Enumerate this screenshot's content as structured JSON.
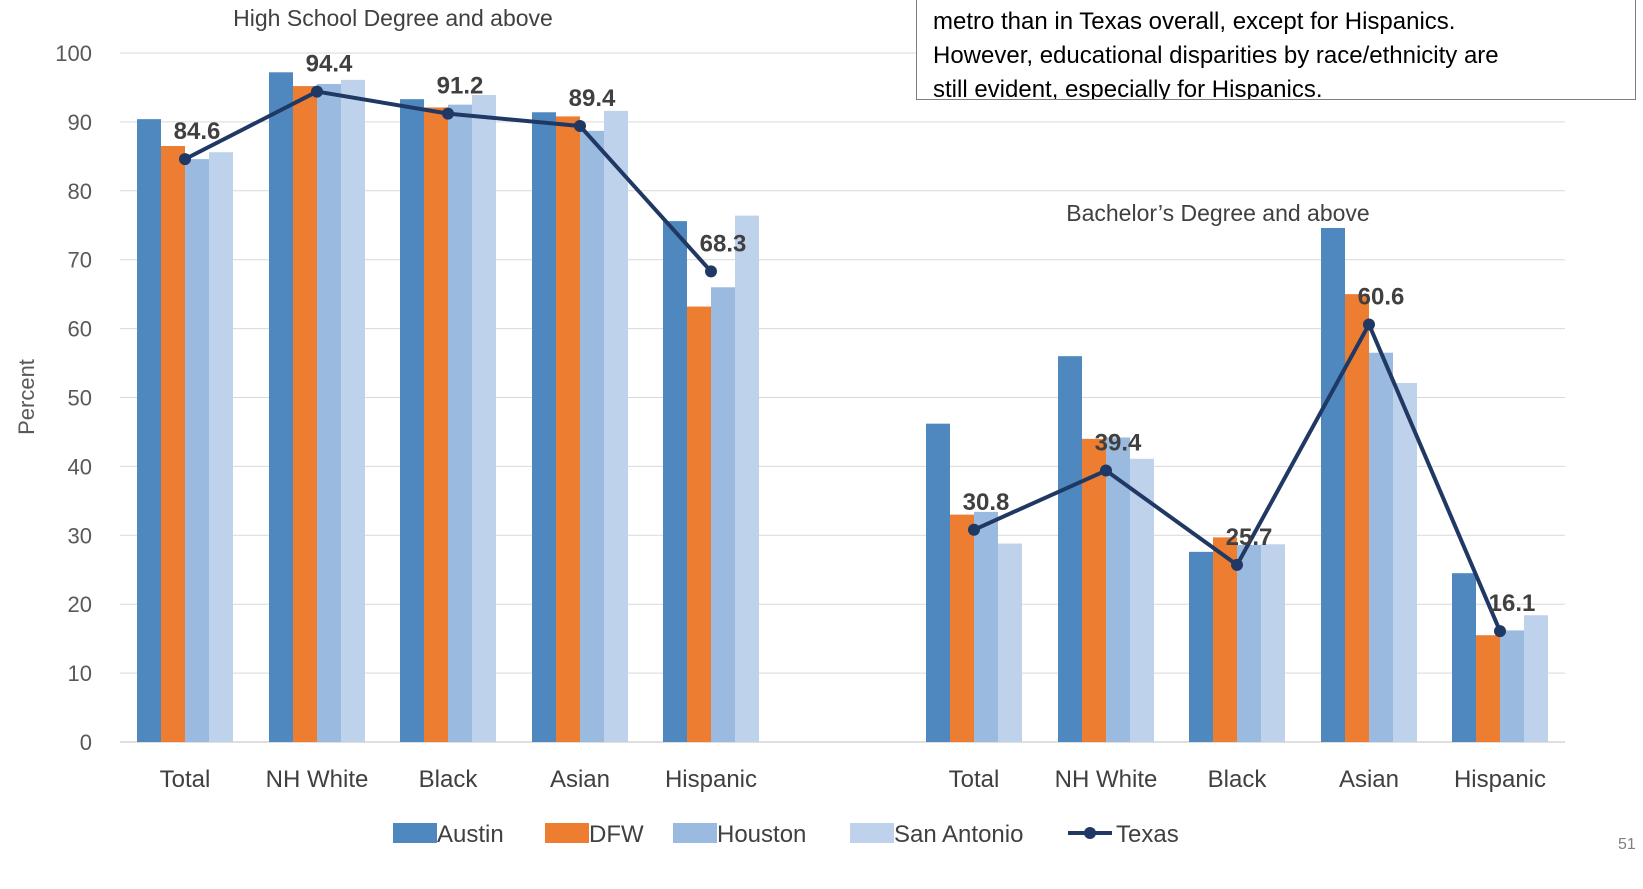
{
  "callout": {
    "lines": [
      "metro than in Texas overall, except for Hispanics.",
      "However, educational disparities by race/ethnicity are",
      "still evident, especially for Hispanics."
    ]
  },
  "page_number": "51",
  "chart_data": {
    "type": "bar",
    "ylabel": "Percent",
    "xlabel": "",
    "ylim": [
      0,
      100
    ],
    "yticks": [
      0,
      10,
      20,
      30,
      40,
      50,
      60,
      70,
      80,
      90,
      100
    ],
    "grid": true,
    "legend_position": "bottom",
    "colors": {
      "Austin": "#4f88bf",
      "DFW": "#ed7d31",
      "Houston": "#9bbae0",
      "San Antonio": "#bfd2ec",
      "Texas": "#1f3864"
    },
    "legend": [
      "Austin",
      "DFW",
      "Houston",
      "San Antonio",
      "Texas"
    ],
    "panels": [
      {
        "title": "High School Degree and above",
        "categories": [
          "Total",
          "NH White",
          "Black",
          "Asian",
          "Hispanic"
        ],
        "series": [
          {
            "name": "Austin",
            "type": "bar",
            "values": [
              90.4,
              97.2,
              93.3,
              91.4,
              75.6
            ]
          },
          {
            "name": "DFW",
            "type": "bar",
            "values": [
              86.5,
              95.2,
              92.1,
              90.8,
              63.2
            ]
          },
          {
            "name": "Houston",
            "type": "bar",
            "values": [
              84.6,
              95.5,
              92.5,
              88.7,
              66.0
            ]
          },
          {
            "name": "San Antonio",
            "type": "bar",
            "values": [
              85.6,
              96.1,
              93.9,
              91.6,
              76.4
            ]
          },
          {
            "name": "Texas",
            "type": "line",
            "values": [
              84.6,
              94.4,
              91.2,
              89.4,
              68.3
            ],
            "labels": [
              "84.6",
              "94.4",
              "91.2",
              "89.4",
              "68.3"
            ]
          }
        ]
      },
      {
        "title": "Bachelor’s Degree and above",
        "categories": [
          "Total",
          "NH White",
          "Black",
          "Asian",
          "Hispanic"
        ],
        "series": [
          {
            "name": "Austin",
            "type": "bar",
            "values": [
              46.2,
              56.0,
              27.6,
              74.6,
              24.5
            ]
          },
          {
            "name": "DFW",
            "type": "bar",
            "values": [
              33.0,
              44.0,
              29.7,
              65.0,
              15.5
            ]
          },
          {
            "name": "Houston",
            "type": "bar",
            "values": [
              33.4,
              44.2,
              28.6,
              56.5,
              16.2
            ]
          },
          {
            "name": "San Antonio",
            "type": "bar",
            "values": [
              28.8,
              41.1,
              28.7,
              52.1,
              18.4
            ]
          },
          {
            "name": "Texas",
            "type": "line",
            "values": [
              30.8,
              39.4,
              25.7,
              60.6,
              16.1
            ],
            "labels": [
              "30.8",
              "39.4",
              "25.7",
              "60.6",
              "16.1"
            ]
          }
        ]
      }
    ]
  }
}
